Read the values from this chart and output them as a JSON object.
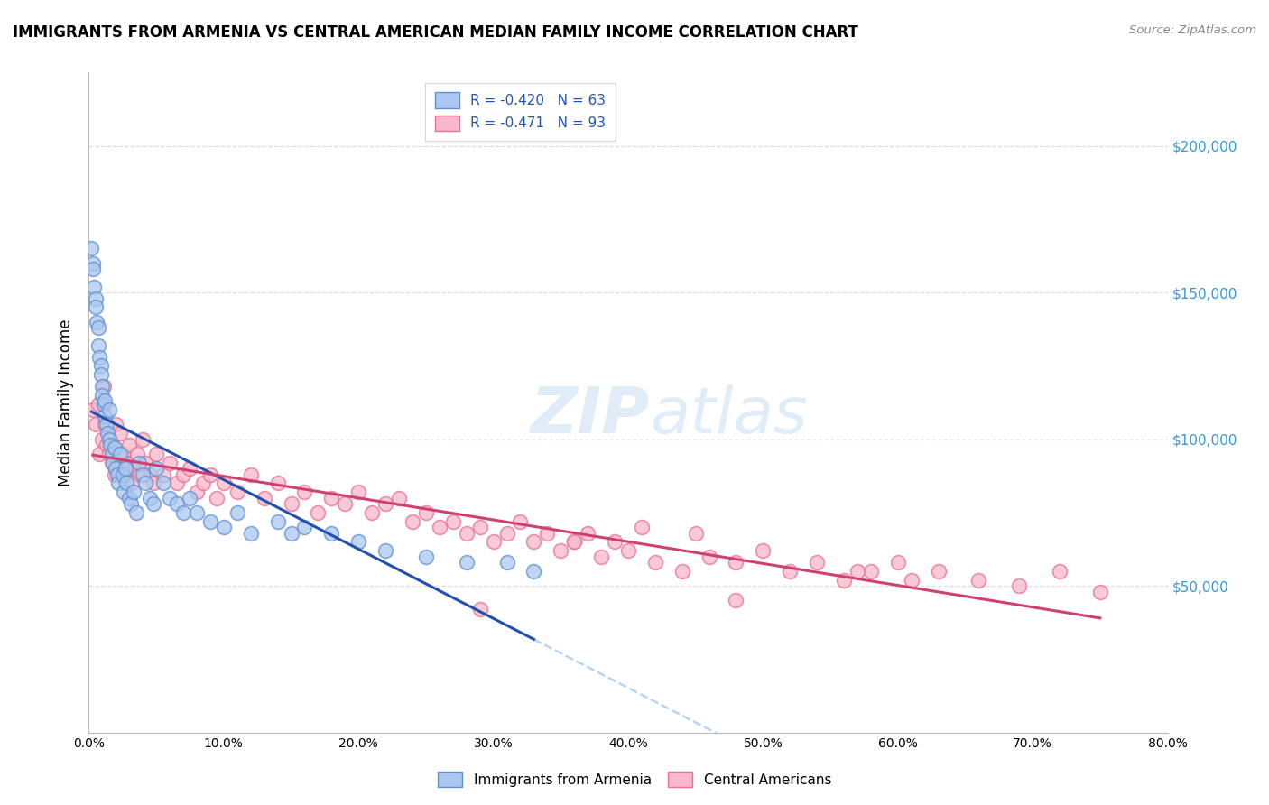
{
  "title": "IMMIGRANTS FROM ARMENIA VS CENTRAL AMERICAN MEDIAN FAMILY INCOME CORRELATION CHART",
  "source": "Source: ZipAtlas.com",
  "ylabel": "Median Family Income",
  "right_yticks": [
    50000,
    100000,
    150000,
    200000
  ],
  "right_yticklabels": [
    "$50,000",
    "$100,000",
    "$150,000",
    "$200,000"
  ],
  "legend_line1": "R = -0.420   N = 63",
  "legend_line2": "R = -0.471   N = 93",
  "legend_label1": "Immigrants from Armenia",
  "legend_label2": "Central Americans",
  "blue_scatter_face": "#aac8f0",
  "blue_scatter_edge": "#6090d0",
  "pink_scatter_face": "#f8b8cc",
  "pink_scatter_edge": "#e87090",
  "blue_line_color": "#2050b0",
  "pink_line_color": "#d04070",
  "dashed_color": "#b8d4f0",
  "watermark_color": "#c8dff5",
  "background_color": "#ffffff",
  "grid_color": "#dddddd",
  "xlim": [
    0.0,
    0.8
  ],
  "ylim": [
    0,
    225000
  ],
  "xticks": [
    0.0,
    0.1,
    0.2,
    0.3,
    0.4,
    0.5,
    0.6,
    0.7,
    0.8
  ],
  "xticklabels": [
    "0.0%",
    "10.0%",
    "20.0%",
    "30.0%",
    "40.0%",
    "50.0%",
    "60.0%",
    "70.0%",
    "80.0%"
  ],
  "armenia_x": [
    0.002,
    0.003,
    0.003,
    0.004,
    0.005,
    0.005,
    0.006,
    0.007,
    0.007,
    0.008,
    0.009,
    0.009,
    0.01,
    0.01,
    0.011,
    0.012,
    0.012,
    0.013,
    0.014,
    0.015,
    0.015,
    0.016,
    0.017,
    0.018,
    0.019,
    0.02,
    0.021,
    0.022,
    0.023,
    0.025,
    0.026,
    0.027,
    0.028,
    0.03,
    0.031,
    0.033,
    0.035,
    0.037,
    0.04,
    0.042,
    0.045,
    0.048,
    0.05,
    0.055,
    0.06,
    0.065,
    0.07,
    0.075,
    0.08,
    0.09,
    0.1,
    0.11,
    0.12,
    0.14,
    0.15,
    0.16,
    0.18,
    0.2,
    0.22,
    0.25,
    0.28,
    0.31,
    0.33
  ],
  "armenia_y": [
    165000,
    160000,
    158000,
    152000,
    148000,
    145000,
    140000,
    138000,
    132000,
    128000,
    125000,
    122000,
    118000,
    115000,
    112000,
    108000,
    113000,
    105000,
    102000,
    100000,
    110000,
    98000,
    95000,
    92000,
    97000,
    90000,
    88000,
    85000,
    95000,
    88000,
    82000,
    90000,
    85000,
    80000,
    78000,
    82000,
    75000,
    92000,
    88000,
    85000,
    80000,
    78000,
    90000,
    85000,
    80000,
    78000,
    75000,
    80000,
    75000,
    72000,
    70000,
    75000,
    68000,
    72000,
    68000,
    70000,
    68000,
    65000,
    62000,
    60000,
    58000,
    58000,
    55000
  ],
  "central_x": [
    0.003,
    0.005,
    0.007,
    0.008,
    0.01,
    0.011,
    0.012,
    0.013,
    0.015,
    0.016,
    0.017,
    0.018,
    0.019,
    0.02,
    0.021,
    0.022,
    0.023,
    0.025,
    0.026,
    0.027,
    0.028,
    0.03,
    0.032,
    0.034,
    0.036,
    0.038,
    0.04,
    0.042,
    0.045,
    0.048,
    0.05,
    0.055,
    0.06,
    0.065,
    0.07,
    0.075,
    0.08,
    0.085,
    0.09,
    0.095,
    0.1,
    0.11,
    0.12,
    0.13,
    0.14,
    0.15,
    0.16,
    0.17,
    0.18,
    0.19,
    0.2,
    0.21,
    0.22,
    0.23,
    0.24,
    0.25,
    0.26,
    0.27,
    0.28,
    0.29,
    0.3,
    0.31,
    0.32,
    0.33,
    0.34,
    0.35,
    0.36,
    0.37,
    0.38,
    0.39,
    0.4,
    0.42,
    0.44,
    0.46,
    0.48,
    0.5,
    0.52,
    0.54,
    0.56,
    0.58,
    0.6,
    0.63,
    0.66,
    0.69,
    0.72,
    0.75,
    0.57,
    0.61,
    0.45,
    0.41,
    0.48,
    0.36,
    0.29
  ],
  "central_y": [
    110000,
    105000,
    112000,
    95000,
    100000,
    118000,
    105000,
    98000,
    95000,
    100000,
    92000,
    98000,
    88000,
    105000,
    92000,
    88000,
    102000,
    95000,
    90000,
    88000,
    92000,
    98000,
    85000,
    90000,
    95000,
    88000,
    100000,
    92000,
    88000,
    85000,
    95000,
    88000,
    92000,
    85000,
    88000,
    90000,
    82000,
    85000,
    88000,
    80000,
    85000,
    82000,
    88000,
    80000,
    85000,
    78000,
    82000,
    75000,
    80000,
    78000,
    82000,
    75000,
    78000,
    80000,
    72000,
    75000,
    70000,
    72000,
    68000,
    70000,
    65000,
    68000,
    72000,
    65000,
    68000,
    62000,
    65000,
    68000,
    60000,
    65000,
    62000,
    58000,
    55000,
    60000,
    58000,
    62000,
    55000,
    58000,
    52000,
    55000,
    58000,
    55000,
    52000,
    50000,
    55000,
    48000,
    55000,
    52000,
    68000,
    70000,
    45000,
    65000,
    42000
  ]
}
